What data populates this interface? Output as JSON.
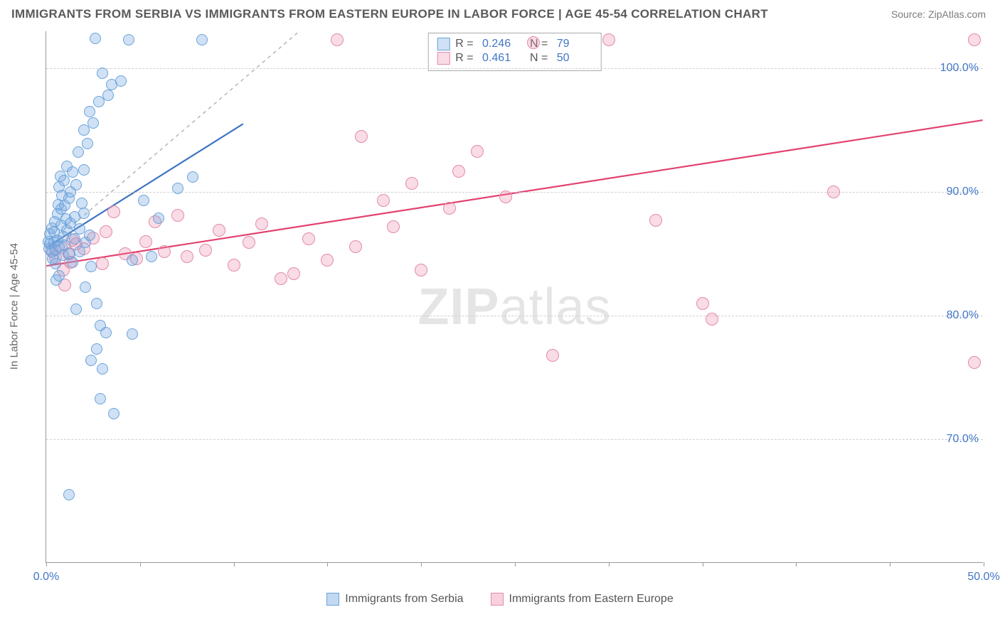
{
  "header": {
    "title": "IMMIGRANTS FROM SERBIA VS IMMIGRANTS FROM EASTERN EUROPE IN LABOR FORCE | AGE 45-54 CORRELATION CHART",
    "source": "Source: ZipAtlas.com"
  },
  "chart": {
    "type": "scatter",
    "ylabel": "In Labor Force | Age 45-54",
    "watermark": "ZIPatlas",
    "xlim": [
      0,
      50
    ],
    "ylim": [
      60,
      103
    ],
    "y_ticks": [
      70,
      80,
      90,
      100
    ],
    "y_tick_labels": [
      "70.0%",
      "80.0%",
      "90.0%",
      "100.0%"
    ],
    "x_ticks": [
      0,
      10,
      20,
      30,
      40,
      50
    ],
    "x_tick_labels": [
      "0.0%",
      "",
      "",
      "",
      "",
      "50.0%"
    ],
    "x_tick_marks": [
      0,
      5,
      10,
      15,
      20,
      25,
      30,
      35,
      40,
      45,
      50
    ],
    "grid_color": "#cfcfcf",
    "axis_color": "#999999",
    "tick_label_color": "#4176c6",
    "background_color": "#ffffff",
    "series": [
      {
        "name": "Immigrants from Serbia",
        "color_fill": "rgba(120,170,225,0.35)",
        "color_stroke": "#6aa3da",
        "line_color": "#3f74c0",
        "r_value": "0.246",
        "n_value": "79",
        "marker_radius": 8,
        "trend": {
          "x1": 0,
          "y1": 85.5,
          "x2": 10.5,
          "y2": 95.5
        },
        "identity_line": {
          "x1": 0,
          "y1": 85.5,
          "x2": 13.5,
          "y2": 103
        },
        "points": [
          [
            0.1,
            86
          ],
          [
            0.15,
            85.4
          ],
          [
            0.2,
            85.8
          ],
          [
            0.2,
            86.6
          ],
          [
            0.3,
            87.1
          ],
          [
            0.3,
            85.1
          ],
          [
            0.35,
            84.6
          ],
          [
            0.4,
            85.9
          ],
          [
            0.4,
            86.8
          ],
          [
            0.45,
            87.6
          ],
          [
            0.5,
            85.3
          ],
          [
            0.5,
            84.2
          ],
          [
            0.55,
            82.9
          ],
          [
            0.6,
            88.2
          ],
          [
            0.6,
            86.1
          ],
          [
            0.65,
            89.0
          ],
          [
            0.7,
            90.4
          ],
          [
            0.7,
            85.6
          ],
          [
            0.75,
            91.3
          ],
          [
            0.8,
            88.6
          ],
          [
            0.8,
            87.3
          ],
          [
            0.85,
            89.7
          ],
          [
            0.9,
            86.4
          ],
          [
            0.9,
            84.9
          ],
          [
            0.95,
            90.9
          ],
          [
            1.0,
            88.9
          ],
          [
            1.0,
            85.7
          ],
          [
            1.05,
            87.8
          ],
          [
            1.1,
            92.1
          ],
          [
            1.1,
            86.9
          ],
          [
            1.2,
            89.5
          ],
          [
            1.2,
            85.0
          ],
          [
            1.3,
            90.0
          ],
          [
            1.3,
            87.5
          ],
          [
            1.4,
            91.6
          ],
          [
            1.4,
            84.3
          ],
          [
            1.5,
            88.0
          ],
          [
            1.5,
            86.2
          ],
          [
            1.6,
            90.6
          ],
          [
            1.7,
            93.2
          ],
          [
            1.8,
            87.0
          ],
          [
            1.8,
            85.2
          ],
          [
            1.9,
            89.1
          ],
          [
            2.0,
            95.0
          ],
          [
            2.0,
            91.8
          ],
          [
            2.0,
            88.3
          ],
          [
            2.1,
            85.9
          ],
          [
            2.1,
            82.3
          ],
          [
            2.2,
            93.9
          ],
          [
            2.3,
            96.5
          ],
          [
            2.3,
            86.5
          ],
          [
            2.4,
            84.0
          ],
          [
            2.5,
            95.6
          ],
          [
            2.6,
            102.4
          ],
          [
            2.7,
            77.3
          ],
          [
            2.7,
            81.0
          ],
          [
            2.8,
            97.3
          ],
          [
            2.9,
            79.2
          ],
          [
            3.0,
            99.6
          ],
          [
            3.0,
            75.7
          ],
          [
            3.2,
            78.6
          ],
          [
            3.3,
            97.8
          ],
          [
            3.5,
            98.7
          ],
          [
            3.6,
            72.1
          ],
          [
            4.0,
            99.0
          ],
          [
            4.4,
            102.3
          ],
          [
            4.6,
            84.5
          ],
          [
            4.6,
            78.5
          ],
          [
            5.2,
            89.3
          ],
          [
            5.6,
            84.8
          ],
          [
            6.0,
            87.9
          ],
          [
            7.0,
            90.3
          ],
          [
            7.8,
            91.2
          ],
          [
            8.3,
            102.3
          ],
          [
            1.2,
            65.5
          ],
          [
            2.4,
            76.4
          ],
          [
            1.6,
            80.5
          ],
          [
            2.9,
            73.3
          ],
          [
            0.7,
            83.2
          ]
        ]
      },
      {
        "name": "Immigrants from Eastern Europe",
        "color_fill": "rgba(235,140,170,0.30)",
        "color_stroke": "#e48aab",
        "line_color": "#e2426f",
        "r_value": "0.461",
        "n_value": "50",
        "marker_radius": 9,
        "trend": {
          "x1": 0,
          "y1": 84.0,
          "x2": 50,
          "y2": 95.8
        },
        "points": [
          [
            0.3,
            85.3
          ],
          [
            0.5,
            84.7
          ],
          [
            0.8,
            85.5
          ],
          [
            0.9,
            83.7
          ],
          [
            1.0,
            82.5
          ],
          [
            1.2,
            85.0
          ],
          [
            1.3,
            84.3
          ],
          [
            1.4,
            86.1
          ],
          [
            1.6,
            85.8
          ],
          [
            2.0,
            85.4
          ],
          [
            2.5,
            86.3
          ],
          [
            3.0,
            84.2
          ],
          [
            3.2,
            86.8
          ],
          [
            3.6,
            88.4
          ],
          [
            4.2,
            85.0
          ],
          [
            4.8,
            84.6
          ],
          [
            5.3,
            86.0
          ],
          [
            5.8,
            87.6
          ],
          [
            6.3,
            85.2
          ],
          [
            7.0,
            88.1
          ],
          [
            7.5,
            84.8
          ],
          [
            8.5,
            85.3
          ],
          [
            9.2,
            86.9
          ],
          [
            10.0,
            84.1
          ],
          [
            10.8,
            85.9
          ],
          [
            11.5,
            87.4
          ],
          [
            12.5,
            83.0
          ],
          [
            13.2,
            83.4
          ],
          [
            14.0,
            86.2
          ],
          [
            15.0,
            84.5
          ],
          [
            15.5,
            102.3
          ],
          [
            16.5,
            85.6
          ],
          [
            16.8,
            94.5
          ],
          [
            18.0,
            89.3
          ],
          [
            18.5,
            87.2
          ],
          [
            19.5,
            90.7
          ],
          [
            20.0,
            83.7
          ],
          [
            21.5,
            88.7
          ],
          [
            22.0,
            91.7
          ],
          [
            23.0,
            93.3
          ],
          [
            24.5,
            89.6
          ],
          [
            26.0,
            102.1
          ],
          [
            27.0,
            76.8
          ],
          [
            30.0,
            102.3
          ],
          [
            32.5,
            87.7
          ],
          [
            35.0,
            81.0
          ],
          [
            35.5,
            79.7
          ],
          [
            42.0,
            90.0
          ],
          [
            49.5,
            102.3
          ],
          [
            49.5,
            76.2
          ]
        ]
      }
    ],
    "legend_bottom": [
      {
        "label": "Immigrants from Serbia",
        "fill": "rgba(120,170,225,0.45)",
        "stroke": "#6aa3da"
      },
      {
        "label": "Immigrants from Eastern Europe",
        "fill": "rgba(235,140,170,0.40)",
        "stroke": "#e48aab"
      }
    ]
  }
}
